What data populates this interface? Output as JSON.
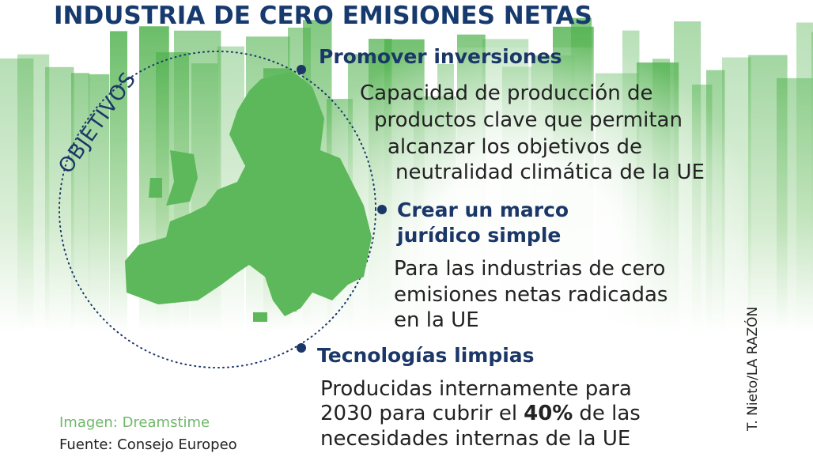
{
  "header": {
    "title": "INDUSTRIA DE CERO EMISIONES NETAS"
  },
  "circle_label": "OBJETIVOS",
  "items": [
    {
      "heading": [
        "Promover inversiones"
      ],
      "body": [
        "Capacidad de producción de",
        "productos clave que permitan",
        "alcanzar los objetivos de",
        "neutralidad climática de la UE"
      ]
    },
    {
      "heading": [
        "Crear un marco",
        "jurídico simple"
      ],
      "body": [
        "Para las industrias de cero",
        "emisiones netas radicadas",
        "en la UE"
      ]
    },
    {
      "heading": [
        "Tecnologías limpias"
      ],
      "body": [
        "Producidas internamente para",
        {
          "before": "2030 para cubrir el",
          "bold": "40%",
          "after": "de las"
        },
        "necesidades internas de la UE"
      ]
    }
  ],
  "credits": {
    "image": "Imagen: Dreamstime",
    "source": "Fuente: Consejo Europeo",
    "author": "T. Nieto/LA RAZÓN"
  }
}
